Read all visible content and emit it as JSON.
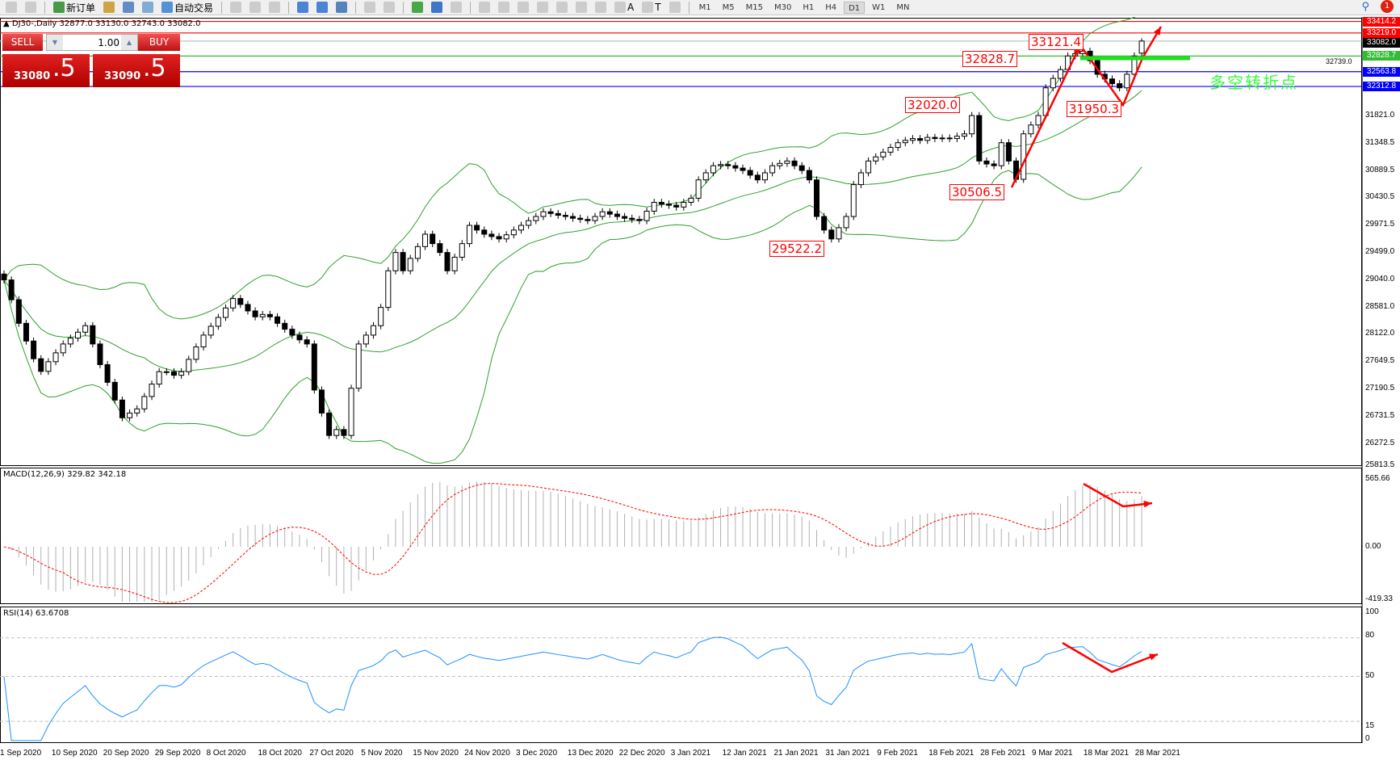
{
  "toolbar": {
    "items": [
      {
        "name": "new-chart-icon",
        "label": ""
      },
      {
        "name": "zoom-chart-icon",
        "label": ""
      },
      {
        "name": "new-order-button",
        "label": "新订单",
        "color": "#2a8a2a"
      },
      {
        "name": "market-watch-icon",
        "label": "",
        "color": "#c8962a"
      },
      {
        "name": "navigator-icon",
        "label": "",
        "color": "#4a7ac0"
      },
      {
        "name": "signals-icon",
        "label": "",
        "color": "#6aa0d0"
      },
      {
        "name": "auto-trading-button",
        "label": "自动交易",
        "color": "#3a80d0"
      },
      {
        "name": "bar-chart-icon",
        "label": ""
      },
      {
        "name": "candlestick-icon",
        "label": ""
      },
      {
        "name": "line-chart-icon",
        "label": ""
      },
      {
        "name": "zoom-in-icon",
        "label": "",
        "color": "#3070d0"
      },
      {
        "name": "zoom-out-icon",
        "label": "",
        "color": "#3070d0"
      },
      {
        "name": "tile-windows-icon",
        "label": "",
        "color": "#3a70b0"
      },
      {
        "name": "autoscroll-icon",
        "label": ""
      },
      {
        "name": "chart-shift-icon",
        "label": ""
      },
      {
        "name": "indicators-icon",
        "label": "",
        "color": "#2a9a2a"
      },
      {
        "name": "periods-icon",
        "label": "",
        "color": "#2060c0"
      },
      {
        "name": "templates-icon",
        "label": ""
      },
      {
        "name": "cursor-icon",
        "label": ""
      },
      {
        "name": "crosshair-icon",
        "label": ""
      },
      {
        "name": "vertical-line-icon",
        "label": ""
      },
      {
        "name": "horizontal-line-icon",
        "label": ""
      },
      {
        "name": "trendline-icon",
        "label": ""
      },
      {
        "name": "fibonacci-icon",
        "label": ""
      },
      {
        "name": "fibo-fan-icon",
        "label": ""
      },
      {
        "name": "text-icon",
        "label": "A"
      },
      {
        "name": "text-label-icon",
        "label": "T"
      },
      {
        "name": "arrows-icon",
        "label": ""
      }
    ],
    "timeframes": [
      "M1",
      "M5",
      "M15",
      "M30",
      "H1",
      "H4",
      "D1",
      "W1",
      "MN"
    ],
    "active_timeframe": "D1",
    "alert_count": "1"
  },
  "chart": {
    "header": "DJ30-,Daily  32877.0 33130.0 32743.0 33082.0",
    "oneclick": {
      "sell": "SELL",
      "buy": "BUY",
      "lot": "1.00",
      "bid_main": "33080",
      "bid_pips": ".5",
      "ask_main": "33090",
      "ask_pips": ".5"
    },
    "price_axis": [
      "31821.0",
      "31348.5",
      "30889.5",
      "30430.5",
      "29971.5",
      "29499.0",
      "29040.0",
      "28581.0",
      "28122.0",
      "27649.5",
      "27190.5",
      "26731.5",
      "26272.5",
      "25813.5"
    ],
    "hlines": [
      {
        "value": "33414.2",
        "color": "#ff0000"
      },
      {
        "value": "33219.0",
        "color": "#ff0000"
      },
      {
        "value": "33082.0",
        "color": "#000000",
        "line": "#c0c0c0"
      },
      {
        "value": "32828.7",
        "color": "#33bb33"
      },
      {
        "value": "32563.8",
        "color": "#0000ff"
      },
      {
        "value": "32312.8",
        "color": "#0000ff"
      }
    ],
    "sub_label": "32739.0",
    "annotations": [
      {
        "text": "33121.4"
      },
      {
        "text": "32828.7"
      },
      {
        "text": "32020.0"
      },
      {
        "text": "31950.3"
      },
      {
        "text": "30506.5"
      },
      {
        "text": "29522.2"
      }
    ],
    "note": "多空转折点",
    "colors": {
      "band": "#2ca02c",
      "arrow": "#ff0000",
      "macd_hist": "#b0b0b0",
      "macd_signal": "#ff0000",
      "rsi": "#1e90ff",
      "note": "#33ff33"
    }
  },
  "macd": {
    "label": "MACD(12,26,9) 329.82 342.18",
    "axis": [
      "565.66",
      "0.00",
      "-419.33"
    ]
  },
  "rsi": {
    "label": "RSI(14) 63.6708",
    "axis": [
      "100",
      "80",
      "50",
      "15",
      "0"
    ]
  },
  "dates": [
    "1 Sep 2020",
    "10 Sep 2020",
    "20 Sep 2020",
    "29 Sep 2020",
    "8 Oct 2020",
    "18 Oct 2020",
    "27 Oct 2020",
    "5 Nov 2020",
    "15 Nov 2020",
    "24 Nov 2020",
    "3 Dec 2020",
    "13 Dec 2020",
    "22 Dec 2020",
    "3 Jan 2021",
    "12 Jan 2021",
    "21 Jan 2021",
    "31 Jan 2021",
    "9 Feb 2021",
    "18 Feb 2021",
    "28 Feb 2021",
    "9 Mar 2021",
    "18 Mar 2021",
    "28 Mar 2021"
  ],
  "chart_data": {
    "type": "candlestick",
    "symbol": "DJ30-",
    "timeframe": "Daily",
    "ylim": [
      25813.5,
      33414.2
    ],
    "last_bar": {
      "open": 32877.0,
      "high": 33130.0,
      "low": 32743.0,
      "close": 33082.0
    },
    "closes": [
      29035,
      28700,
      28300,
      28000,
      27700,
      27486,
      27650,
      27800,
      27950,
      28050,
      28150,
      28260,
      27950,
      27600,
      27300,
      27000,
      26700,
      26780,
      26850,
      27060,
      27270,
      27480,
      27480,
      27420,
      27480,
      27690,
      27900,
      28100,
      28250,
      28400,
      28560,
      28720,
      28620,
      28510,
      28410,
      28450,
      28410,
      28300,
      28200,
      28100,
      28020,
      27950,
      27170,
      26780,
      26400,
      26500,
      26400,
      27200,
      27950,
      28100,
      28260,
      28570,
      29190,
      29500,
      29190,
      29400,
      29600,
      29810,
      29650,
      29500,
      29190,
      29420,
      29650,
      29960,
      29880,
      29810,
      29770,
      29730,
      29800,
      29880,
      29960,
      30040,
      30110,
      30190,
      30160,
      30130,
      30110,
      30080,
      30060,
      30040,
      30110,
      30190,
      30150,
      30110,
      30080,
      30060,
      30040,
      30200,
      30350,
      30320,
      30300,
      30270,
      30350,
      30420,
      30730,
      30850,
      30970,
      30990,
      30970,
      30930,
      30890,
      30810,
      30730,
      30850,
      30970,
      31010,
      31050,
      30970,
      30890,
      30730,
      30110,
      29880,
      29730,
      29920,
      30110,
      30650,
      30850,
      31050,
      31120,
      31200,
      31280,
      31360,
      31400,
      31430,
      31400,
      31450,
      31430,
      31440,
      31430,
      31470,
      31510,
      31820,
      31050,
      31000,
      30970,
      31360,
      31050,
      30740,
      31510,
      31660,
      31820,
      32290,
      32450,
      32600,
      32830,
      32870,
      32910,
      32750,
      32520,
      32440,
      32360,
      32290,
      32520,
      32830,
      33082
    ],
    "indicators": [
      "Bollinger Bands",
      "MACD(12,26,9)",
      "RSI(14)"
    ],
    "rsi_levels": [
      80,
      50,
      15
    ]
  }
}
